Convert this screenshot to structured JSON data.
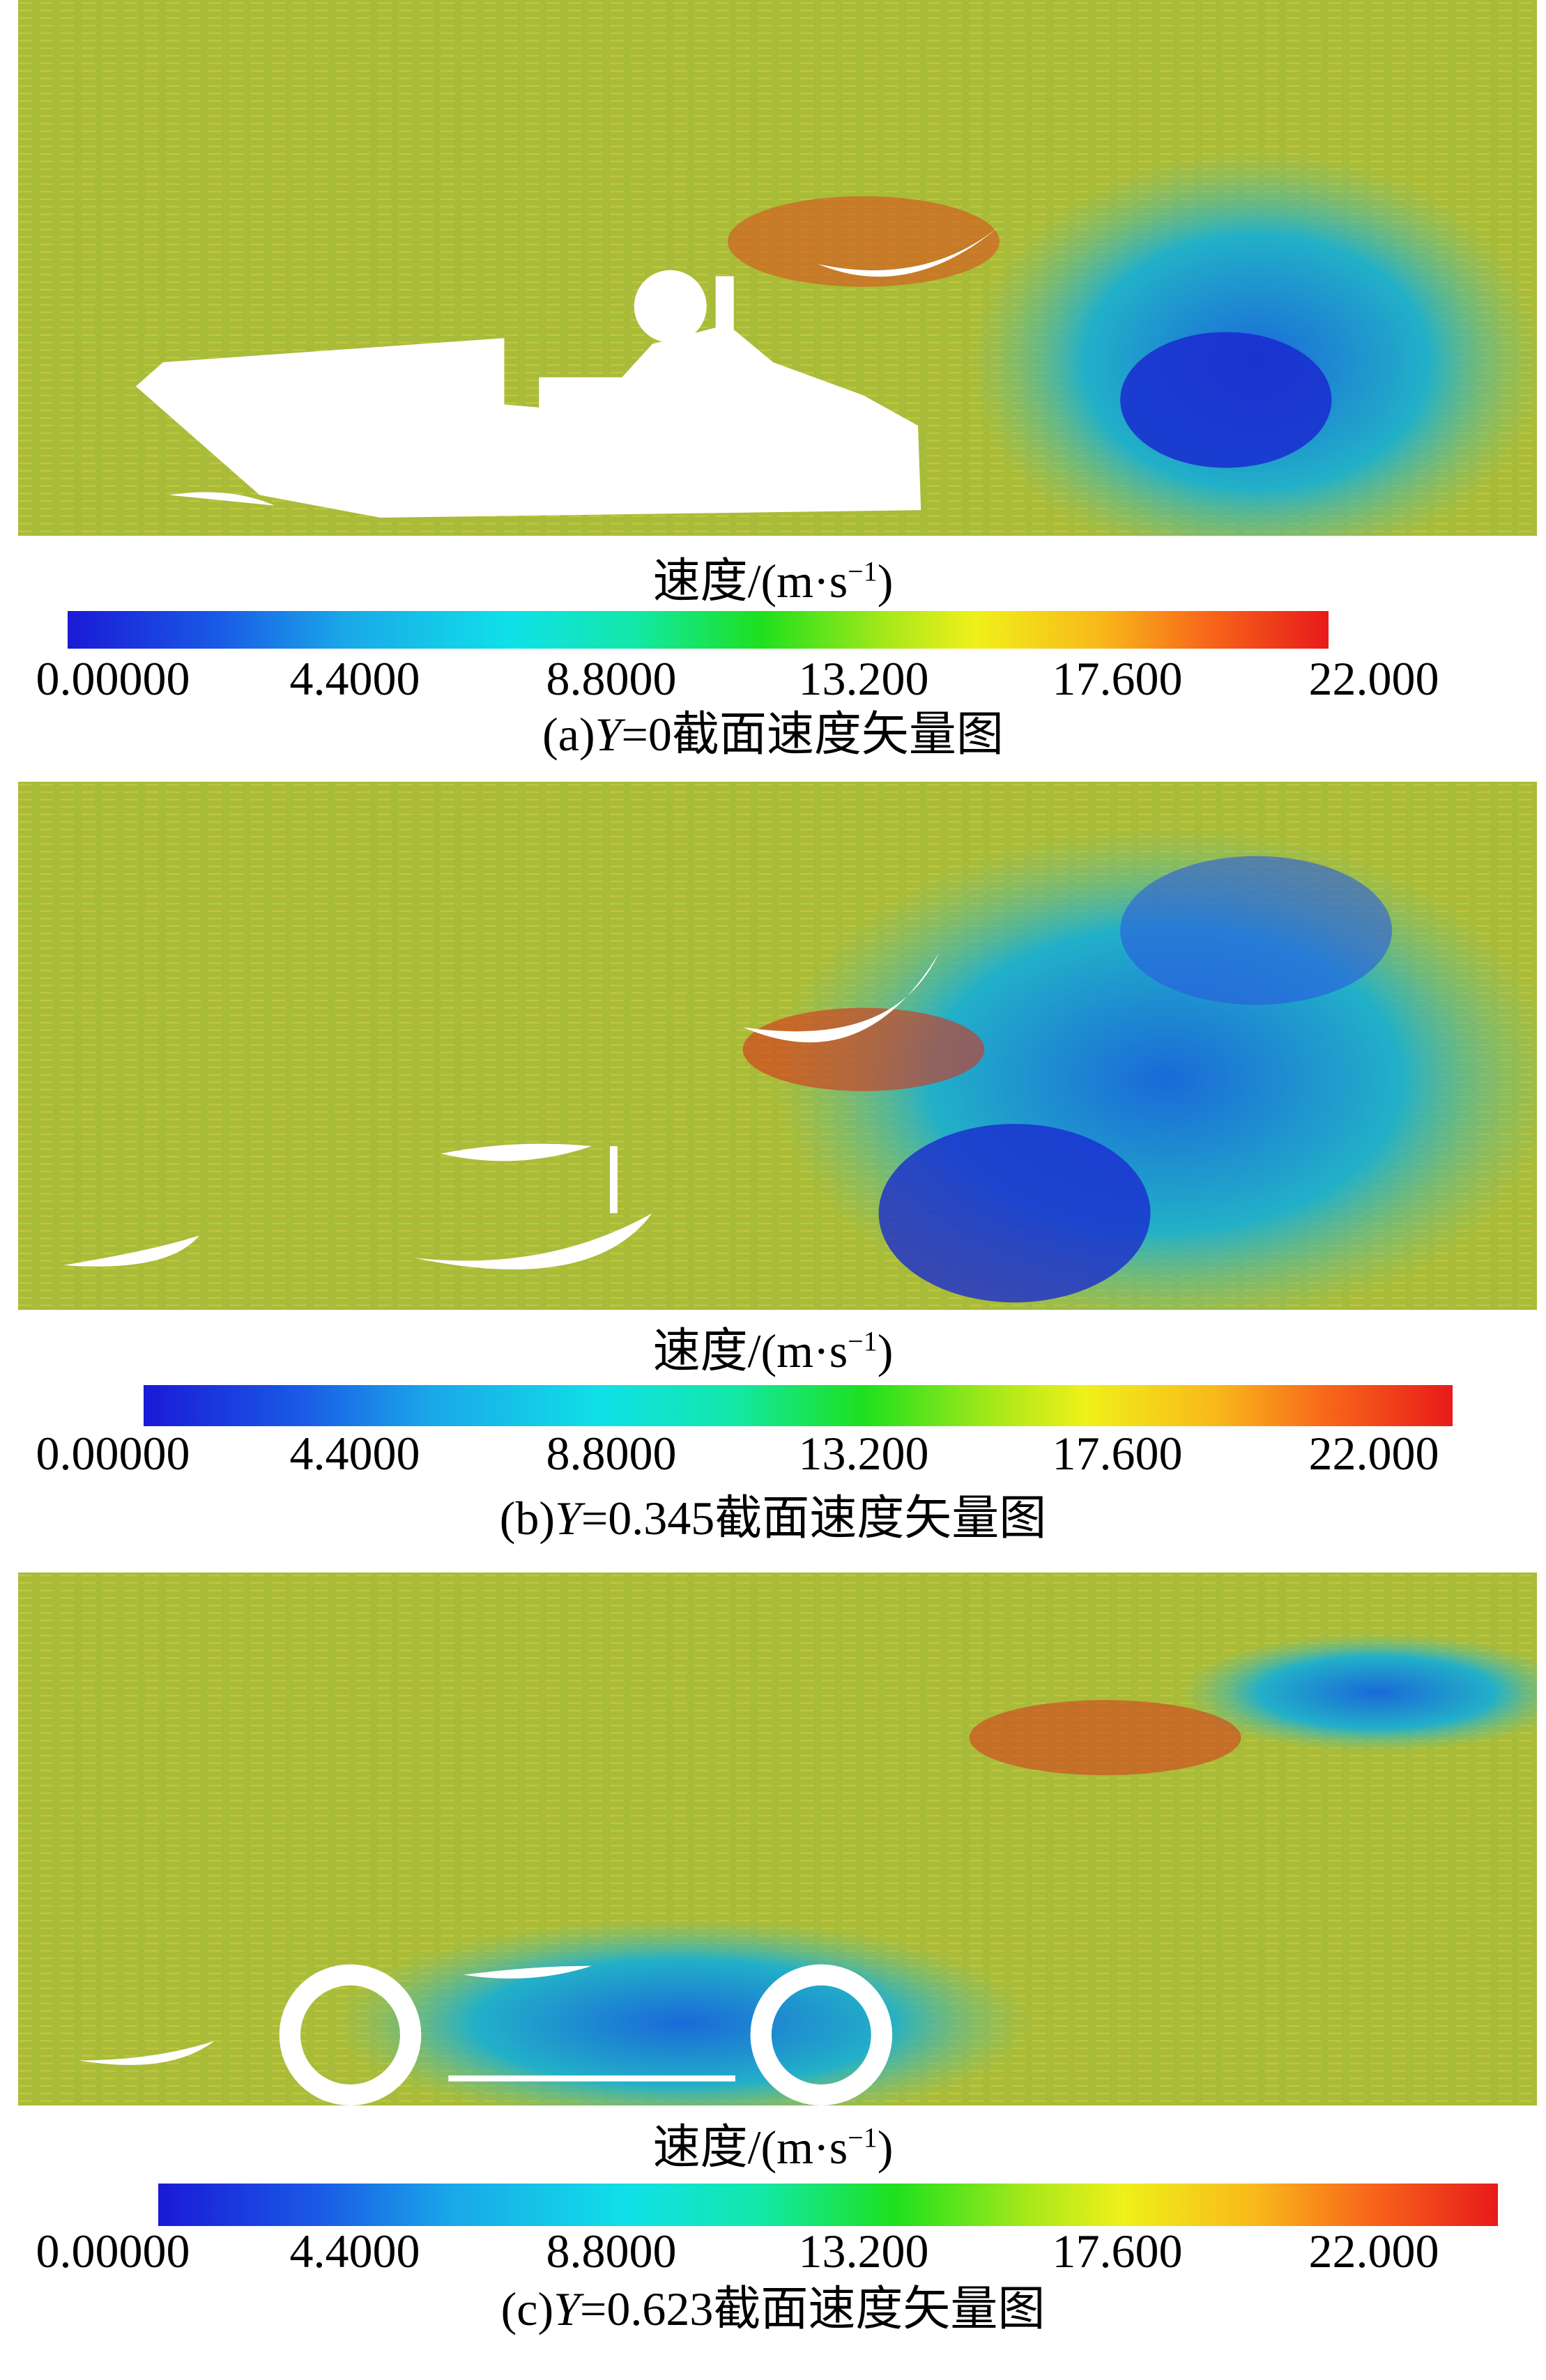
{
  "panels": [
    {
      "legend": {
        "label": "速度/(m·s",
        "exponent": "−1",
        "close": ")"
      },
      "ticks": [
        "0.00000",
        "4.4000",
        "8.8000",
        "13.200",
        "17.600",
        "22.000"
      ],
      "caption": {
        "prefix": "(a)",
        "variable": "Y",
        "rest": "=0截面速度矢量图"
      }
    },
    {
      "legend": {
        "label": "速度/(m·s",
        "exponent": "−1",
        "close": ")"
      },
      "ticks": [
        "0.00000",
        "4.4000",
        "8.8000",
        "13.200",
        "17.600",
        "22.000"
      ],
      "caption": {
        "prefix": "(b)",
        "variable": "Y",
        "rest": "=0.345截面速度矢量图"
      }
    },
    {
      "legend": {
        "label": "速度/(m·s",
        "exponent": "−1",
        "close": ")"
      },
      "ticks": [
        "0.00000",
        "4.4000",
        "8.8000",
        "13.200",
        "17.600",
        "22.000"
      ],
      "caption": {
        "prefix": "(c)",
        "variable": "Y",
        "rest": "=0.623截面速度矢量图"
      }
    }
  ]
}
